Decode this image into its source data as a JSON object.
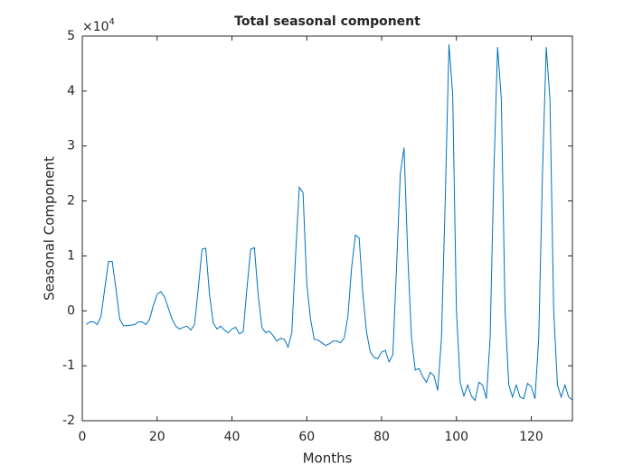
{
  "chart_data": {
    "type": "line",
    "title": "Total seasonal component",
    "xlabel": "Months",
    "ylabel": "Seasonal Component",
    "y_exponent": {
      "base": "×10",
      "power": "4"
    },
    "x": [
      1,
      2,
      3,
      4,
      5,
      6,
      7,
      8,
      9,
      10,
      11,
      12,
      13,
      14,
      15,
      16,
      17,
      18,
      19,
      20,
      21,
      22,
      23,
      24,
      25,
      26,
      27,
      28,
      29,
      30,
      31,
      32,
      33,
      34,
      35,
      36,
      37,
      38,
      39,
      40,
      41,
      42,
      43,
      44,
      45,
      46,
      47,
      48,
      49,
      50,
      51,
      52,
      53,
      54,
      55,
      56,
      57,
      58,
      59,
      60,
      61,
      62,
      63,
      64,
      65,
      66,
      67,
      68,
      69,
      70,
      71,
      72,
      73,
      74,
      75,
      76,
      77,
      78,
      79,
      80,
      81,
      82,
      83,
      84,
      85,
      86,
      87,
      88,
      89,
      90,
      91,
      92,
      93,
      94,
      95,
      96,
      97,
      98,
      99,
      100,
      101,
      102,
      103,
      104,
      105,
      106,
      107,
      108,
      109,
      110,
      111,
      112,
      113,
      114,
      115,
      116,
      117,
      118,
      119,
      120,
      121,
      122,
      123,
      124,
      125,
      126,
      127,
      128,
      129,
      130,
      131
    ],
    "series": [
      {
        "color": "#0072bd",
        "values": [
          -0.25,
          -0.2,
          -0.2,
          -0.25,
          -0.1,
          0.4,
          0.9,
          0.9,
          0.4,
          -0.15,
          -0.27,
          -0.27,
          -0.26,
          -0.25,
          -0.2,
          -0.2,
          -0.25,
          -0.15,
          0.1,
          0.3,
          0.35,
          0.25,
          0.05,
          -0.15,
          -0.28,
          -0.33,
          -0.3,
          -0.28,
          -0.35,
          -0.25,
          0.4,
          1.12,
          1.14,
          0.3,
          -0.22,
          -0.33,
          -0.28,
          -0.35,
          -0.4,
          -0.33,
          -0.3,
          -0.42,
          -0.38,
          0.4,
          1.12,
          1.15,
          0.3,
          -0.3,
          -0.4,
          -0.37,
          -0.45,
          -0.55,
          -0.5,
          -0.52,
          -0.66,
          -0.4,
          1.0,
          2.25,
          2.15,
          0.5,
          -0.15,
          -0.52,
          -0.53,
          -0.58,
          -0.63,
          -0.6,
          -0.55,
          -0.55,
          -0.58,
          -0.5,
          -0.1,
          0.8,
          1.38,
          1.33,
          0.3,
          -0.4,
          -0.75,
          -0.85,
          -0.87,
          -0.75,
          -0.72,
          -0.93,
          -0.8,
          0.8,
          2.5,
          2.97,
          1.0,
          -0.5,
          -1.08,
          -1.05,
          -1.2,
          -1.3,
          -1.12,
          -1.18,
          -1.45,
          -0.5,
          2.0,
          4.85,
          3.95,
          0.0,
          -1.3,
          -1.55,
          -1.35,
          -1.55,
          -1.63,
          -1.3,
          -1.35,
          -1.6,
          -0.5,
          2.5,
          4.8,
          3.85,
          0.0,
          -1.35,
          -1.57,
          -1.35,
          -1.57,
          -1.6,
          -1.32,
          -1.38,
          -1.6,
          -0.5,
          2.5,
          4.8,
          3.85,
          0.0,
          -1.35,
          -1.57,
          -1.35,
          -1.57,
          -1.62
        ]
      }
    ],
    "xlim": [
      0,
      131
    ],
    "xticks": [
      0,
      20,
      40,
      60,
      80,
      100,
      120
    ],
    "ylim": [
      -2,
      5
    ],
    "yticks": [
      -2,
      -1,
      0,
      1,
      2,
      3,
      4,
      5
    ],
    "grid": false
  }
}
